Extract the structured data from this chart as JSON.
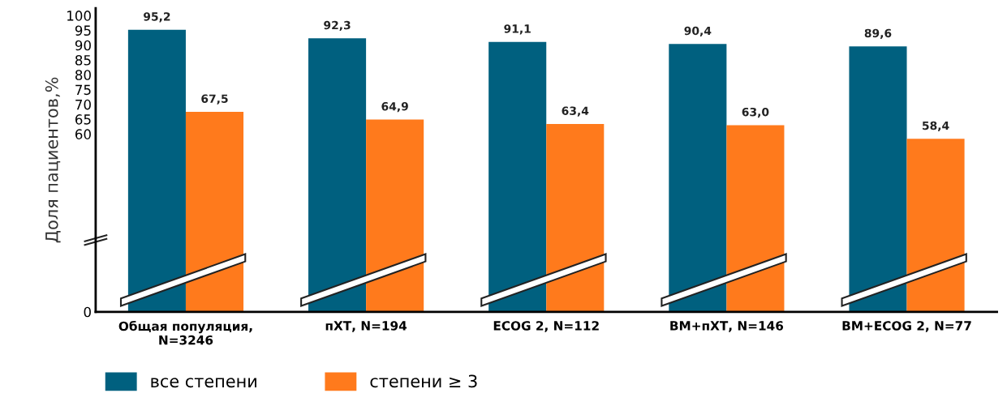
{
  "chart_data": {
    "type": "bar",
    "ylabel": "Доля пациентов,%",
    "categories": [
      "Общая популяция,\nN=3246",
      "пХТ, N=194",
      "ECOG 2, N=112",
      "ВМ+пХТ, N=146",
      "ВМ+ECOG 2, N=77"
    ],
    "series": [
      {
        "name": "все степени",
        "color": "#00607f",
        "values": [
          95.2,
          92.3,
          91.1,
          90.4,
          89.6
        ],
        "value_labels": [
          "95,2",
          "92,3",
          "91,1",
          "90,4",
          "89,6"
        ]
      },
      {
        "name": "степени ≥ 3",
        "color": "#ff7a1c",
        "values": [
          67.5,
          64.9,
          63.4,
          63.0,
          58.4
        ],
        "value_labels": [
          "67,5",
          "64,9",
          "63,4",
          "63,0",
          "58,4"
        ]
      }
    ],
    "ylim": [
      0,
      102.5
    ],
    "yticks": [
      0,
      60,
      65,
      70,
      75,
      80,
      85,
      90,
      95,
      100
    ],
    "grid": false,
    "legend": "bottom left"
  }
}
